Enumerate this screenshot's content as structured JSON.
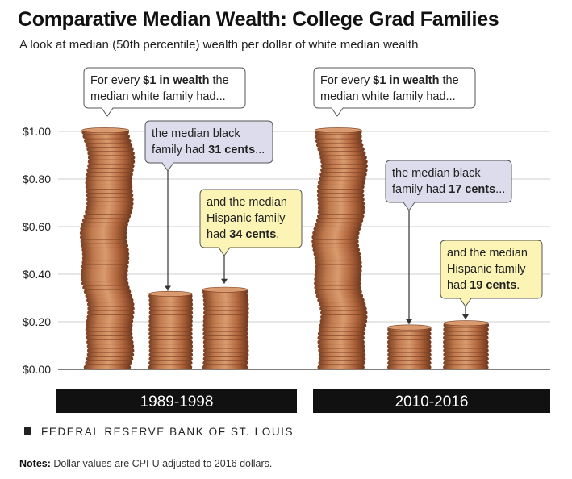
{
  "title": "Comparative Median Wealth: College Grad Families",
  "subtitle": "A look at median (50th percentile) wealth per dollar of white median wealth",
  "source": "FEDERAL RESERVE BANK OF ST. LOUIS",
  "notes": {
    "label": "Notes:",
    "text": "Dollar values are CPI-U adjusted to 2016 dollars."
  },
  "colors": {
    "penny": "#b4683f",
    "penny_dark": "#7a3f22",
    "penny_light": "#d89a6e",
    "white_callout": "#ffffff",
    "black_callout": "#dcdcec",
    "hispanic_callout": "#fbf4b5",
    "period_band": "#111111"
  },
  "chart_data": {
    "type": "bar",
    "ylim": [
      0,
      1.0
    ],
    "y_ticks": [
      "$0.00",
      "$0.20",
      "$0.40",
      "$0.60",
      "$0.80",
      "$1.00"
    ],
    "y_tick_values": [
      0,
      0.2,
      0.4,
      0.6,
      0.8,
      1.0
    ],
    "grid": true,
    "periods": [
      {
        "label": "1989-1998",
        "groups": [
          {
            "group": "white",
            "value": 1.0,
            "callout": [
              [
                "For every ",
                "$1 in wealth",
                " the"
              ],
              [
                "median white family had..."
              ]
            ]
          },
          {
            "group": "black",
            "value": 0.31,
            "callout": [
              [
                "the median black"
              ],
              [
                "family had ",
                "31 cents",
                "..."
              ]
            ]
          },
          {
            "group": "hispanic",
            "value": 0.34,
            "callout": [
              [
                "and the median"
              ],
              [
                "Hispanic family"
              ],
              [
                "had ",
                "34 cents",
                "."
              ]
            ]
          }
        ]
      },
      {
        "label": "2010-2016",
        "groups": [
          {
            "group": "white",
            "value": 1.0,
            "callout": [
              [
                "For every ",
                "$1 in wealth",
                " the"
              ],
              [
                "median white family had..."
              ]
            ]
          },
          {
            "group": "black",
            "value": 0.17,
            "callout": [
              [
                "the median black"
              ],
              [
                "family had ",
                "17 cents",
                "..."
              ]
            ]
          },
          {
            "group": "hispanic",
            "value": 0.19,
            "callout": [
              [
                "and the median"
              ],
              [
                "Hispanic family"
              ],
              [
                "had ",
                "19 cents",
                "."
              ]
            ]
          }
        ]
      }
    ]
  }
}
